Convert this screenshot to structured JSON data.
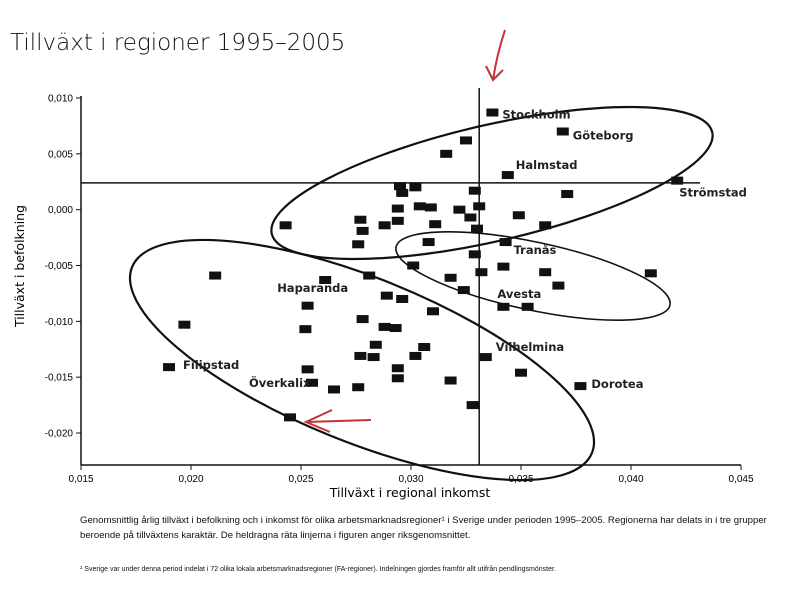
{
  "title": "Tillväxt i regioner 1995–2005",
  "caption": "Genomsnittlig årlig tillväxt i befolkning och i inkomst för olika arbetsmarknadsregioner¹ i Sverige under perioden 1995–2005. Regionerna har delats in i tre grupper beroende på tillväxtens karaktär. De heldragna räta linjerna i figuren anger riksgenomsnittet.",
  "footnote": "¹ Sverige var under denna period indelat i 72 olika lokala arbetsmarknadsregioner (FA-regioner). Indelningen gjordes framför allt utifrån pendlingsmönster.",
  "chart_data": {
    "type": "scatter",
    "title": "Tillväxt i regioner 1995–2005",
    "xlabel": "Tillväxt i regional inkomst",
    "ylabel": "Tillväxt i befolkning",
    "xlim": [
      0.015,
      0.045
    ],
    "ylim": [
      -0.022,
      0.01
    ],
    "xticks": [
      0.015,
      0.02,
      0.025,
      0.03,
      0.035,
      0.04,
      0.045
    ],
    "xtick_labels": [
      "0,015",
      "0,020",
      "0,025",
      "0,030",
      "0,035",
      "0,040",
      "0,045"
    ],
    "yticks": [
      0.01,
      0.005,
      0.0,
      -0.005,
      -0.01,
      -0.015,
      -0.02
    ],
    "ytick_labels": [
      "0,010",
      "0,005",
      "0,000",
      "-0,005",
      "-0,010",
      "-0,015",
      "-0,020"
    ],
    "reference_lines": {
      "national_avg_income": 0.0331,
      "national_avg_population": 0.0024
    },
    "points": [
      {
        "x": 0.0337,
        "y": 0.0087,
        "label": "Stockholm"
      },
      {
        "x": 0.0369,
        "y": 0.007,
        "label": "Göteborg"
      },
      {
        "x": 0.0325,
        "y": 0.0062
      },
      {
        "x": 0.0316,
        "y": 0.005
      },
      {
        "x": 0.0344,
        "y": 0.0031,
        "label": "Halmstad"
      },
      {
        "x": 0.0421,
        "y": 0.0026,
        "label": "Strömstad"
      },
      {
        "x": 0.0295,
        "y": 0.0021
      },
      {
        "x": 0.0296,
        "y": 0.0015
      },
      {
        "x": 0.0302,
        "y": 0.002
      },
      {
        "x": 0.0329,
        "y": 0.0017
      },
      {
        "x": 0.0371,
        "y": 0.0014
      },
      {
        "x": 0.0294,
        "y": 0.0001
      },
      {
        "x": 0.0304,
        "y": 0.0003
      },
      {
        "x": 0.0309,
        "y": 0.0002
      },
      {
        "x": 0.0322,
        "y": 0.0
      },
      {
        "x": 0.0331,
        "y": 0.0003
      },
      {
        "x": 0.0327,
        "y": -0.0007
      },
      {
        "x": 0.0349,
        "y": -0.0005
      },
      {
        "x": 0.0294,
        "y": -0.001
      },
      {
        "x": 0.0311,
        "y": -0.0013
      },
      {
        "x": 0.0277,
        "y": -0.0009
      },
      {
        "x": 0.0278,
        "y": -0.0019
      },
      {
        "x": 0.0276,
        "y": -0.0031
      },
      {
        "x": 0.0288,
        "y": -0.0014
      },
      {
        "x": 0.0243,
        "y": -0.0014
      },
      {
        "x": 0.0361,
        "y": -0.0014
      },
      {
        "x": 0.033,
        "y": -0.0017
      },
      {
        "x": 0.0308,
        "y": -0.0029
      },
      {
        "x": 0.0343,
        "y": -0.0029,
        "label": "Tranås"
      },
      {
        "x": 0.0329,
        "y": -0.004
      },
      {
        "x": 0.0301,
        "y": -0.005
      },
      {
        "x": 0.0342,
        "y": -0.0051
      },
      {
        "x": 0.0332,
        "y": -0.0056
      },
      {
        "x": 0.0361,
        "y": -0.0056
      },
      {
        "x": 0.0409,
        "y": -0.0057
      },
      {
        "x": 0.0318,
        "y": -0.0061
      },
      {
        "x": 0.0324,
        "y": -0.0072
      },
      {
        "x": 0.0367,
        "y": -0.0068
      },
      {
        "x": 0.0342,
        "y": -0.0087,
        "label": "Avesta"
      },
      {
        "x": 0.0353,
        "y": -0.0087
      },
      {
        "x": 0.0211,
        "y": -0.0059
      },
      {
        "x": 0.0261,
        "y": -0.0063,
        "label": "Haparanda"
      },
      {
        "x": 0.0281,
        "y": -0.0059
      },
      {
        "x": 0.0253,
        "y": -0.0086
      },
      {
        "x": 0.0289,
        "y": -0.0077
      },
      {
        "x": 0.0296,
        "y": -0.008
      },
      {
        "x": 0.031,
        "y": -0.0091
      },
      {
        "x": 0.0197,
        "y": -0.0103
      },
      {
        "x": 0.0252,
        "y": -0.0107
      },
      {
        "x": 0.0278,
        "y": -0.0098
      },
      {
        "x": 0.0288,
        "y": -0.0105
      },
      {
        "x": 0.0293,
        "y": -0.0106
      },
      {
        "x": 0.0284,
        "y": -0.0121
      },
      {
        "x": 0.0277,
        "y": -0.0131
      },
      {
        "x": 0.0283,
        "y": -0.0132
      },
      {
        "x": 0.0306,
        "y": -0.0123
      },
      {
        "x": 0.0302,
        "y": -0.0131
      },
      {
        "x": 0.0334,
        "y": -0.0132,
        "label": "Vilhelmina"
      },
      {
        "x": 0.0294,
        "y": -0.0142
      },
      {
        "x": 0.0294,
        "y": -0.0151
      },
      {
        "x": 0.019,
        "y": -0.0141,
        "label": "Filipstad"
      },
      {
        "x": 0.0253,
        "y": -0.0143
      },
      {
        "x": 0.0255,
        "y": -0.0155,
        "label": "Överkalix"
      },
      {
        "x": 0.0265,
        "y": -0.0161
      },
      {
        "x": 0.0276,
        "y": -0.0159
      },
      {
        "x": 0.0318,
        "y": -0.0153
      },
      {
        "x": 0.035,
        "y": -0.0146
      },
      {
        "x": 0.0377,
        "y": -0.0158,
        "label": "Dorotea"
      },
      {
        "x": 0.0328,
        "y": -0.0175
      },
      {
        "x": 0.0245,
        "y": -0.0186
      }
    ]
  },
  "colors": {
    "marks": "#111111",
    "annotation_arrow": "#c8323a"
  }
}
